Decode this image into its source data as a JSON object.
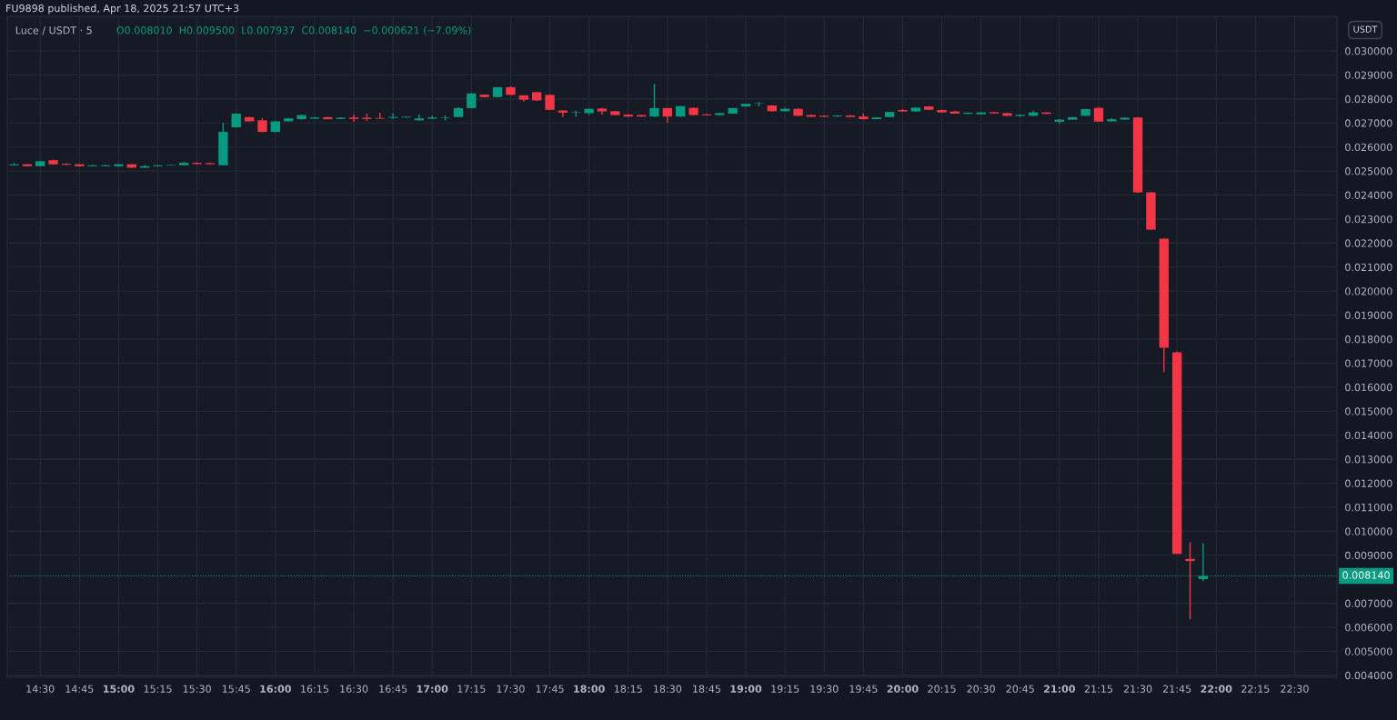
{
  "chart_data": {
    "type": "candlestick",
    "title": "Luce / USDT · 5",
    "subtitle": "O0.008010  H0.009500  L0.007937  C0.008140  −0.000621 (−7.09%)",
    "annotations": [
      "FU9898 published, Apr 18, 2025 21:57 UTC+3",
      "USDT"
    ],
    "x": [
      14.3333,
      14.4167,
      14.5,
      14.5833,
      14.6667,
      14.75,
      14.8333,
      14.9167,
      15.0,
      15.0833,
      15.1667,
      15.25,
      15.3333,
      15.4167,
      15.5,
      15.5833,
      15.6667,
      15.75,
      15.8333,
      15.9167,
      16.0,
      16.0833,
      16.1667,
      16.25,
      16.3333,
      16.4167,
      16.5,
      16.5833,
      16.6667,
      16.75,
      16.8333,
      16.9167,
      17.0,
      17.0833,
      17.1667,
      17.25,
      17.3333,
      17.4167,
      17.5,
      17.5833,
      17.6667,
      17.75,
      17.8333,
      17.9167,
      18.0,
      18.0833,
      18.1667,
      18.25,
      18.3333,
      18.4167,
      18.5,
      18.5833,
      18.6667,
      18.75,
      18.8333,
      18.9167,
      19.0,
      19.0833,
      19.1667,
      19.25,
      19.3333,
      19.4167,
      19.5,
      19.5833,
      19.6667,
      19.75,
      19.8333,
      19.9167,
      20.0,
      20.0833,
      20.1667,
      20.25,
      20.3333,
      20.4167,
      20.5,
      20.5833,
      20.6667,
      20.75,
      20.8333,
      20.9167,
      21.0,
      21.0833,
      21.1667,
      21.25,
      21.3333,
      21.4167,
      21.5,
      21.5833,
      21.6667,
      21.75,
      21.8333,
      21.9167
    ],
    "ohlc": [
      [
        0.02524,
        0.02534,
        0.02523,
        0.02528
      ],
      [
        0.02528,
        0.02529,
        0.02519,
        0.0252
      ],
      [
        0.0252,
        0.02542,
        0.02519,
        0.02541
      ],
      [
        0.02545,
        0.02547,
        0.02527,
        0.02528
      ],
      [
        0.0253,
        0.02532,
        0.02525,
        0.02526
      ],
      [
        0.02528,
        0.02529,
        0.02519,
        0.0252
      ],
      [
        0.0252,
        0.02525,
        0.02519,
        0.02524
      ],
      [
        0.0252,
        0.02526,
        0.02519,
        0.02524
      ],
      [
        0.0252,
        0.0253,
        0.02519,
        0.02528
      ],
      [
        0.02528,
        0.02529,
        0.02513,
        0.02514
      ],
      [
        0.02514,
        0.02525,
        0.02513,
        0.0252
      ],
      [
        0.0252,
        0.02525,
        0.02519,
        0.02524
      ],
      [
        0.02524,
        0.02527,
        0.02523,
        0.02526
      ],
      [
        0.02524,
        0.02538,
        0.02523,
        0.02534
      ],
      [
        0.02534,
        0.02536,
        0.02528,
        0.02529
      ],
      [
        0.02533,
        0.02534,
        0.02527,
        0.02528
      ],
      [
        0.02524,
        0.02701,
        0.02523,
        0.02663
      ],
      [
        0.02682,
        0.02741,
        0.02681,
        0.02739
      ],
      [
        0.02724,
        0.02726,
        0.02706,
        0.02707
      ],
      [
        0.02711,
        0.0272,
        0.02662,
        0.02663
      ],
      [
        0.02663,
        0.02708,
        0.02662,
        0.02707
      ],
      [
        0.02707,
        0.02721,
        0.02706,
        0.02719
      ],
      [
        0.02716,
        0.02734,
        0.02715,
        0.02733
      ],
      [
        0.02718,
        0.02725,
        0.02717,
        0.02723
      ],
      [
        0.02724,
        0.02726,
        0.02715,
        0.02716
      ],
      [
        0.02717,
        0.02724,
        0.02716,
        0.02722
      ],
      [
        0.02723,
        0.02735,
        0.02705,
        0.02717
      ],
      [
        0.02722,
        0.02739,
        0.0271,
        0.02717
      ],
      [
        0.02721,
        0.02743,
        0.02717,
        0.02718
      ],
      [
        0.02721,
        0.02741,
        0.02717,
        0.02725
      ],
      [
        0.02723,
        0.02728,
        0.02722,
        0.02726
      ],
      [
        0.02711,
        0.02735,
        0.0271,
        0.02719
      ],
      [
        0.02718,
        0.0273,
        0.02717,
        0.02723
      ],
      [
        0.02721,
        0.02731,
        0.0271,
        0.02723
      ],
      [
        0.02725,
        0.02765,
        0.02724,
        0.02762
      ],
      [
        0.02762,
        0.02824,
        0.02761,
        0.02823
      ],
      [
        0.02818,
        0.02819,
        0.02807,
        0.02808
      ],
      [
        0.02808,
        0.0285,
        0.02807,
        0.02849
      ],
      [
        0.02849,
        0.02852,
        0.02816,
        0.02817
      ],
      [
        0.02815,
        0.02816,
        0.02789,
        0.02797
      ],
      [
        0.02828,
        0.02829,
        0.02793,
        0.02794
      ],
      [
        0.02817,
        0.02818,
        0.02754,
        0.02755
      ],
      [
        0.02752,
        0.02753,
        0.02726,
        0.02743
      ],
      [
        0.02743,
        0.02752,
        0.02726,
        0.02745
      ],
      [
        0.02741,
        0.0276,
        0.02733,
        0.02759
      ],
      [
        0.0276,
        0.02764,
        0.02735,
        0.02748
      ],
      [
        0.02749,
        0.0275,
        0.02732,
        0.02733
      ],
      [
        0.02735,
        0.02736,
        0.02726,
        0.02727
      ],
      [
        0.02733,
        0.02734,
        0.02726,
        0.02727
      ],
      [
        0.02727,
        0.02863,
        0.02726,
        0.02762
      ],
      [
        0.02762,
        0.02763,
        0.02701,
        0.02727
      ],
      [
        0.02727,
        0.02771,
        0.02726,
        0.0277
      ],
      [
        0.02763,
        0.02764,
        0.02732,
        0.02733
      ],
      [
        0.02736,
        0.02737,
        0.02731,
        0.02732
      ],
      [
        0.02733,
        0.02742,
        0.02732,
        0.02741
      ],
      [
        0.02739,
        0.02763,
        0.02738,
        0.02762
      ],
      [
        0.02769,
        0.02781,
        0.02768,
        0.0278
      ],
      [
        0.0278,
        0.02787,
        0.0277,
        0.02782
      ],
      [
        0.02773,
        0.02774,
        0.02748,
        0.02749
      ],
      [
        0.02749,
        0.02764,
        0.02748,
        0.02759
      ],
      [
        0.02759,
        0.0276,
        0.02729,
        0.0273
      ],
      [
        0.02733,
        0.02735,
        0.02725,
        0.02726
      ],
      [
        0.0273,
        0.02731,
        0.02725,
        0.02726
      ],
      [
        0.02727,
        0.02732,
        0.02726,
        0.02731
      ],
      [
        0.02731,
        0.02732,
        0.02724,
        0.02725
      ],
      [
        0.02727,
        0.02739,
        0.02714,
        0.02716
      ],
      [
        0.02716,
        0.02724,
        0.02715,
        0.02723
      ],
      [
        0.02725,
        0.02747,
        0.02724,
        0.02746
      ],
      [
        0.02754,
        0.02758,
        0.02747,
        0.02748
      ],
      [
        0.02748,
        0.02765,
        0.02747,
        0.02764
      ],
      [
        0.02769,
        0.0277,
        0.02754,
        0.02755
      ],
      [
        0.02754,
        0.02755,
        0.02743,
        0.02744
      ],
      [
        0.02748,
        0.0275,
        0.02738,
        0.02739
      ],
      [
        0.02738,
        0.02744,
        0.02737,
        0.02743
      ],
      [
        0.02736,
        0.02745,
        0.02735,
        0.02744
      ],
      [
        0.02745,
        0.02746,
        0.02739,
        0.0274
      ],
      [
        0.02741,
        0.02742,
        0.02729,
        0.0273
      ],
      [
        0.02729,
        0.02735,
        0.02725,
        0.02734
      ],
      [
        0.0273,
        0.02751,
        0.02729,
        0.02744
      ],
      [
        0.02744,
        0.02745,
        0.02737,
        0.02738
      ],
      [
        0.02705,
        0.02715,
        0.02697,
        0.02714
      ],
      [
        0.02714,
        0.02725,
        0.02713,
        0.02724
      ],
      [
        0.0273,
        0.02759,
        0.02729,
        0.02758
      ],
      [
        0.02763,
        0.02765,
        0.02705,
        0.02706
      ],
      [
        0.02707,
        0.0272,
        0.02706,
        0.02716
      ],
      [
        0.02714,
        0.02723,
        0.02713,
        0.02722
      ],
      [
        0.02723,
        0.02724,
        0.0241,
        0.02411
      ],
      [
        0.02411,
        0.02412,
        0.02255,
        0.02256
      ],
      [
        0.02218,
        0.02219,
        0.01663,
        0.01764
      ],
      [
        0.01745,
        0.01748,
        0.00905,
        0.00906
      ],
      [
        0.00885,
        0.00955,
        0.00634,
        0.008761
      ],
      [
        0.00801,
        0.0095,
        0.007937,
        0.00814
      ]
    ],
    "xlim": [
      14.29,
      22.77
    ],
    "xticks": [
      {
        "value": 14.5,
        "label": "14:30"
      },
      {
        "value": 14.75,
        "label": "14:45"
      },
      {
        "value": 15,
        "label": "15:00"
      },
      {
        "value": 15.25,
        "label": "15:15"
      },
      {
        "value": 15.5,
        "label": "15:30"
      },
      {
        "value": 15.75,
        "label": "15:45"
      },
      {
        "value": 16,
        "label": "16:00"
      },
      {
        "value": 16.25,
        "label": "16:15"
      },
      {
        "value": 16.5,
        "label": "16:30"
      },
      {
        "value": 16.75,
        "label": "16:45"
      },
      {
        "value": 17,
        "label": "17:00"
      },
      {
        "value": 17.25,
        "label": "17:15"
      },
      {
        "value": 17.5,
        "label": "17:30"
      },
      {
        "value": 17.75,
        "label": "17:45"
      },
      {
        "value": 18,
        "label": "18:00"
      },
      {
        "value": 18.25,
        "label": "18:15"
      },
      {
        "value": 18.5,
        "label": "18:30"
      },
      {
        "value": 18.75,
        "label": "18:45"
      },
      {
        "value": 19,
        "label": "19:00"
      },
      {
        "value": 19.25,
        "label": "19:15"
      },
      {
        "value": 19.5,
        "label": "19:30"
      },
      {
        "value": 19.75,
        "label": "19:45"
      },
      {
        "value": 20,
        "label": "20:00"
      },
      {
        "value": 20.25,
        "label": "20:15"
      },
      {
        "value": 20.5,
        "label": "20:30"
      },
      {
        "value": 20.75,
        "label": "20:45"
      },
      {
        "value": 21,
        "label": "21:00"
      },
      {
        "value": 21.25,
        "label": "21:15"
      },
      {
        "value": 21.5,
        "label": "21:30"
      },
      {
        "value": 21.75,
        "label": "21:45"
      },
      {
        "value": 22,
        "label": "22:00"
      },
      {
        "value": 22.25,
        "label": "22:15"
      },
      {
        "value": 22.5,
        "label": "22:30"
      }
    ],
    "ylim": [
      0.00392,
      0.03144
    ],
    "yticks": [
      {
        "value": 0.004,
        "label": "0.004000"
      },
      {
        "value": 0.005,
        "label": "0.005000"
      },
      {
        "value": 0.006,
        "label": "0.006000"
      },
      {
        "value": 0.007,
        "label": "0.007000"
      },
      {
        "value": 0.009,
        "label": "0.009000"
      },
      {
        "value": 0.01,
        "label": "0.010000"
      },
      {
        "value": 0.011,
        "label": "0.011000"
      },
      {
        "value": 0.012,
        "label": "0.012000"
      },
      {
        "value": 0.013,
        "label": "0.013000"
      },
      {
        "value": 0.014,
        "label": "0.014000"
      },
      {
        "value": 0.015,
        "label": "0.015000"
      },
      {
        "value": 0.016,
        "label": "0.016000"
      },
      {
        "value": 0.017,
        "label": "0.017000"
      },
      {
        "value": 0.018,
        "label": "0.018000"
      },
      {
        "value": 0.019,
        "label": "0.019000"
      },
      {
        "value": 0.02,
        "label": "0.020000"
      },
      {
        "value": 0.021,
        "label": "0.021000"
      },
      {
        "value": 0.022,
        "label": "0.022000"
      },
      {
        "value": 0.023,
        "label": "0.023000"
      },
      {
        "value": 0.024,
        "label": "0.024000"
      },
      {
        "value": 0.025,
        "label": "0.025000"
      },
      {
        "value": 0.026,
        "label": "0.026000"
      },
      {
        "value": 0.027,
        "label": "0.027000"
      },
      {
        "value": 0.028,
        "label": "0.028000"
      },
      {
        "value": 0.029,
        "label": "0.029000"
      },
      {
        "value": 0.03,
        "label": "0.030000"
      }
    ],
    "grid": true,
    "ref_lines": [
      {
        "axis": "y",
        "value": 0.00814,
        "label": "0.008140",
        "color": "#089981",
        "line_style": "dotted"
      }
    ]
  }
}
